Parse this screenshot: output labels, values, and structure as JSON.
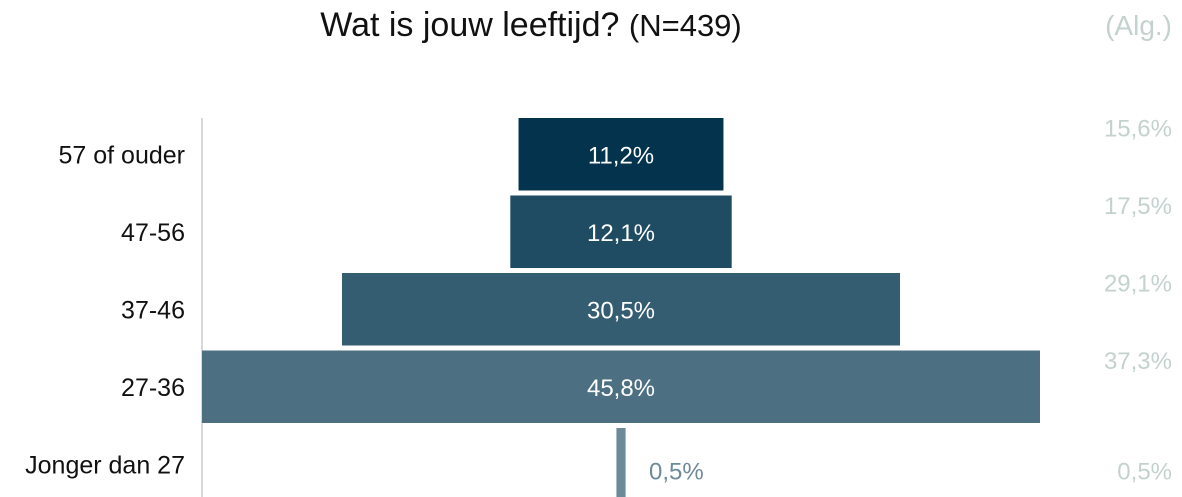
{
  "title": "Wat is jouw leeftijd?",
  "title_n": "(N=439)",
  "alg_header": "(Alg.)",
  "chart_data": {
    "type": "bar",
    "orientation": "horizontal-centered",
    "title": "Wat is jouw leeftijd? (N=439)",
    "categories": [
      "57 of ouder",
      "47-56",
      "37-46",
      "27-36",
      "Jonger dan 27"
    ],
    "values": [
      11.2,
      12.1,
      30.5,
      45.8,
      0.5
    ],
    "value_labels": [
      "11,2%",
      "12,1%",
      "30,5%",
      "45,8%",
      "0,5%"
    ],
    "alg_values": [
      15.6,
      17.5,
      29.1,
      37.3,
      0.5
    ],
    "alg_labels": [
      "15,6%",
      "17,5%",
      "29,1%",
      "37,3%",
      "0,5%"
    ],
    "colors": [
      "#04344d",
      "#1f4b63",
      "#345d72",
      "#4c6f81",
      "#6d8a99"
    ],
    "alg_color": "#c4d2cf",
    "xlim": [
      0,
      45.8
    ],
    "grid": false
  }
}
